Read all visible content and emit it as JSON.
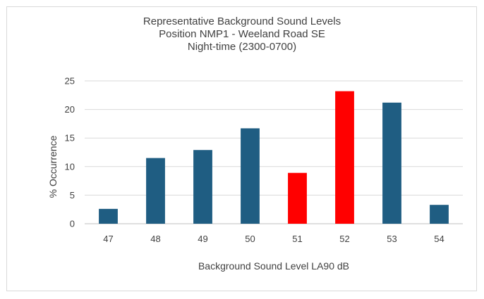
{
  "chart_data": {
    "type": "bar",
    "title_lines": [
      "Representative  Background Sound Levels",
      "Position  NMP1 - Weeland Road SE",
      "Night-time   (2300-0700)"
    ],
    "xlabel": "Background Sound Level LA90 dB",
    "ylabel": "% Occurrence",
    "categories": [
      "47",
      "48",
      "49",
      "50",
      "51",
      "52",
      "53",
      "54"
    ],
    "values": [
      2.6,
      11.5,
      12.9,
      16.7,
      8.9,
      23.2,
      21.2,
      3.3
    ],
    "bar_colors": [
      "#1f5d82",
      "#1f5d82",
      "#1f5d82",
      "#1f5d82",
      "#ff0000",
      "#ff0000",
      "#1f5d82",
      "#1f5d82"
    ],
    "ylim": [
      0,
      25
    ],
    "yticks": [
      0,
      5,
      10,
      15,
      20,
      25
    ],
    "grid": true,
    "legend": "none"
  }
}
